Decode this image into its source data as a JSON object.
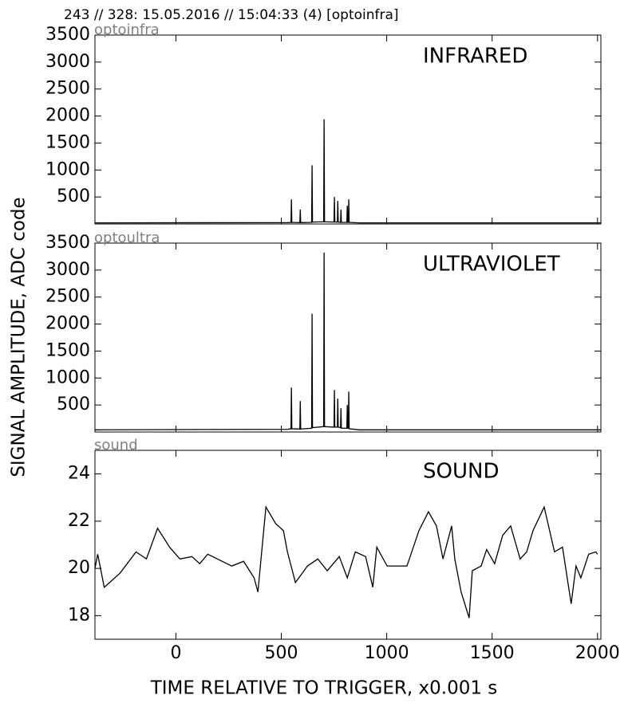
{
  "title": "243 // 328:   15.05.2016 // 15:04:33 (4)  [optoinfra]",
  "ylabel": "SIGNAL AMPLITUDE,  ADC code",
  "chart_data": [
    {
      "type": "line",
      "label": "optoinfra",
      "annotation": "INFRARED",
      "color": "#000000",
      "x": [
        -384,
        530,
        546,
        548,
        550,
        588,
        590,
        592,
        644,
        646,
        648,
        701,
        703,
        705,
        750,
        752,
        754,
        766,
        768,
        770,
        781,
        783,
        785,
        811,
        813,
        815,
        818,
        820,
        822,
        870,
        2016
      ],
      "values": [
        20,
        25,
        30,
        456,
        30,
        25,
        265,
        25,
        30,
        1088,
        35,
        40,
        1941,
        40,
        35,
        500,
        35,
        35,
        426,
        35,
        30,
        265,
        30,
        30,
        338,
        30,
        30,
        456,
        30,
        20,
        20
      ],
      "xlim": [
        -384,
        2016
      ],
      "xticks": [
        0,
        500,
        1000,
        1500,
        2000
      ],
      "ylim": [
        0,
        3500
      ],
      "yticks": [
        500,
        1000,
        1500,
        2000,
        2500,
        3000,
        3500
      ]
    },
    {
      "type": "line",
      "label": "optoultra",
      "annotation": "ULTRAVIOLET",
      "color": "#000000",
      "x": [
        -384,
        530,
        546,
        548,
        550,
        588,
        590,
        592,
        644,
        646,
        648,
        701,
        703,
        705,
        750,
        752,
        754,
        766,
        768,
        770,
        781,
        783,
        785,
        811,
        813,
        815,
        818,
        820,
        822,
        870,
        2016
      ],
      "values": [
        40,
        50,
        60,
        824,
        60,
        55,
        574,
        55,
        70,
        2191,
        80,
        100,
        3324,
        100,
        90,
        779,
        90,
        90,
        618,
        90,
        80,
        441,
        70,
        70,
        500,
        70,
        70,
        750,
        60,
        40,
        40
      ],
      "xlim": [
        -384,
        2016
      ],
      "xticks": [
        0,
        500,
        1000,
        1500,
        2000
      ],
      "ylim": [
        0,
        3500
      ],
      "yticks": [
        500,
        1000,
        1500,
        2000,
        2500,
        3000,
        3500
      ]
    },
    {
      "type": "line",
      "label": "sound",
      "annotation": "SOUND",
      "color": "#000000",
      "xlabel": "TIME RELATIVE TO TRIGGER,   x0.001 s",
      "x": [
        -384,
        -371,
        -340,
        -265,
        -189,
        -140,
        -87,
        -30,
        19,
        76,
        113,
        151,
        265,
        321,
        371,
        389,
        427,
        473,
        510,
        529,
        567,
        624,
        673,
        718,
        775,
        813,
        851,
        900,
        934,
        953,
        1002,
        1096,
        1153,
        1198,
        1236,
        1267,
        1308,
        1323,
        1353,
        1391,
        1406,
        1448,
        1474,
        1512,
        1550,
        1588,
        1633,
        1664,
        1694,
        1747,
        1796,
        1834,
        1875,
        1898,
        1921,
        1958,
        1992,
        2000
      ],
      "values": [
        20.0,
        20.6,
        19.2,
        19.8,
        20.7,
        20.4,
        21.7,
        20.9,
        20.4,
        20.5,
        20.2,
        20.6,
        20.1,
        20.3,
        19.6,
        19.0,
        22.6,
        21.9,
        21.6,
        20.7,
        19.4,
        20.1,
        20.4,
        19.9,
        20.5,
        19.6,
        20.7,
        20.5,
        19.2,
        20.9,
        20.1,
        20.1,
        21.6,
        22.4,
        21.8,
        20.4,
        21.8,
        20.4,
        19.0,
        17.9,
        19.9,
        20.1,
        20.8,
        20.2,
        21.4,
        21.8,
        20.4,
        20.7,
        21.6,
        22.6,
        20.7,
        20.9,
        18.5,
        20.1,
        19.6,
        20.6,
        20.7,
        20.6
      ],
      "xlim": [
        -384,
        2016
      ],
      "xticks": [
        0,
        500,
        1000,
        1500,
        2000
      ],
      "ylim": [
        17,
        25
      ],
      "yticks": [
        18,
        20,
        22,
        24
      ]
    }
  ]
}
